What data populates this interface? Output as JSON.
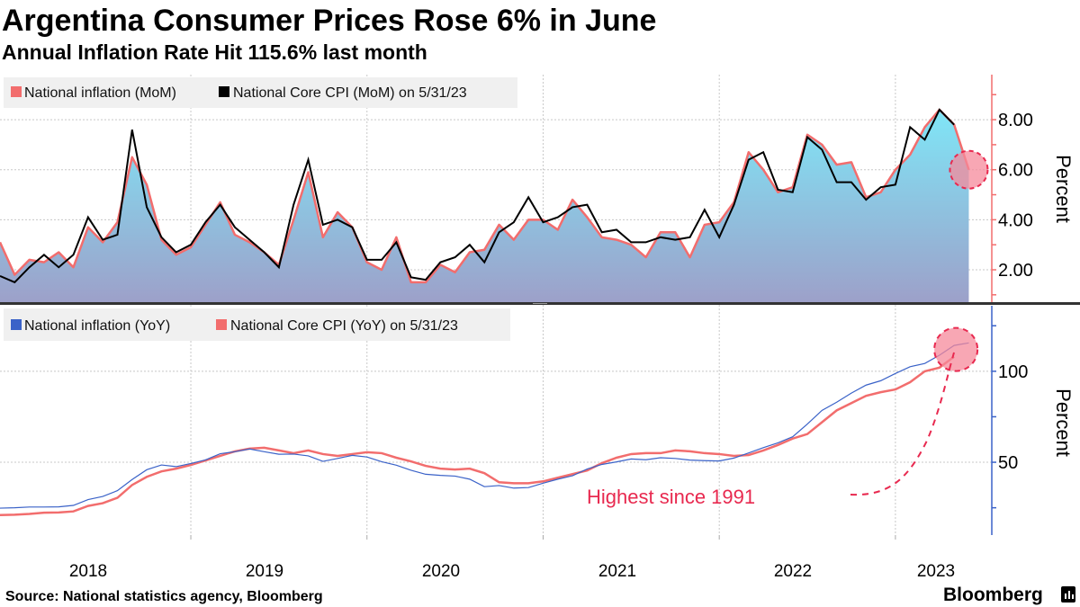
{
  "title": "Argentina Consumer Prices Rose 6% in June",
  "subtitle": "Annual Inflation Rate Hit 115.6% last month",
  "source": "Source: National statistics agency, Bloomberg",
  "brand": "Bloomberg",
  "colors": {
    "headline_mom": "#f26d6d",
    "core_mom": "#000000",
    "headline_yoy": "#3a62c8",
    "core_yoy": "#f26d6d",
    "fill_top": "#7fe6f7",
    "fill_bottom": "#9da0c9",
    "annotation": "#e8294f",
    "top_axis": "#f26d6d",
    "bottom_axis": "#3a62c8"
  },
  "chart_data": [
    {
      "type": "area",
      "x_start": "2017-12",
      "x_end": "2023-06",
      "frequency": "monthly",
      "ylabel": "Percent",
      "ylim": [
        0.67,
        9.8
      ],
      "yticks": [
        "2.00",
        "4.00",
        "6.00",
        "8.00"
      ],
      "grid": true,
      "legend_placement": "top-left",
      "series": [
        {
          "name": "National inflation (MoM)",
          "style": "area-line",
          "values": [
            3.1,
            1.8,
            2.4,
            2.3,
            2.7,
            2.1,
            3.7,
            3.1,
            3.9,
            6.5,
            5.4,
            3.2,
            2.6,
            2.9,
            3.8,
            4.7,
            3.4,
            3.1,
            2.7,
            2.2,
            4.0,
            5.9,
            3.3,
            4.3,
            3.7,
            2.3,
            2.0,
            3.3,
            1.5,
            1.5,
            2.2,
            1.9,
            2.7,
            2.8,
            3.8,
            3.2,
            4.0,
            4.0,
            3.6,
            4.8,
            4.1,
            3.3,
            3.2,
            3.0,
            2.5,
            3.5,
            3.5,
            2.5,
            3.8,
            3.9,
            4.7,
            6.7,
            6.0,
            5.1,
            5.3,
            7.4,
            7.0,
            6.2,
            6.3,
            4.9,
            5.1,
            6.0,
            6.6,
            7.7,
            8.4,
            7.8,
            6.0
          ]
        },
        {
          "name": "National Core CPI (MoM) on 5/31/23",
          "style": "line",
          "values": [
            1.75,
            1.5,
            2.1,
            2.6,
            2.1,
            2.6,
            4.1,
            3.2,
            3.4,
            7.6,
            4.5,
            3.3,
            2.7,
            3.0,
            3.9,
            4.6,
            3.7,
            3.2,
            2.7,
            2.1,
            4.6,
            6.4,
            3.8,
            4.0,
            3.7,
            2.4,
            2.4,
            3.1,
            1.7,
            1.6,
            2.3,
            2.5,
            3.0,
            2.3,
            3.5,
            3.9,
            4.9,
            3.9,
            4.1,
            4.5,
            4.6,
            3.5,
            3.6,
            3.1,
            3.1,
            3.3,
            3.2,
            3.3,
            4.4,
            3.3,
            4.6,
            6.4,
            6.7,
            5.2,
            5.1,
            7.3,
            6.8,
            5.5,
            5.5,
            4.8,
            5.3,
            5.4,
            7.7,
            7.2,
            8.4,
            7.8
          ]
        }
      ],
      "annotation": {
        "type": "circle",
        "at": "2023-06",
        "value": 6.0
      }
    },
    {
      "type": "line",
      "x_start": "2017-12",
      "x_end": "2023-06",
      "frequency": "monthly",
      "ylabel": "Percent",
      "ylim": [
        10,
        136
      ],
      "yticks": [
        "50",
        "100"
      ],
      "grid": true,
      "legend_placement": "top-left",
      "series": [
        {
          "name": "National inflation (YoY)",
          "values": [
            24.8,
            25.0,
            25.4,
            25.4,
            25.5,
            26.3,
            29.5,
            31.2,
            34.4,
            40.5,
            45.9,
            48.5,
            47.6,
            49.3,
            51.3,
            54.7,
            55.8,
            57.3,
            55.8,
            54.4,
            54.5,
            53.5,
            50.5,
            52.1,
            53.8,
            52.9,
            50.3,
            48.4,
            45.6,
            43.4,
            42.8,
            42.4,
            40.7,
            36.6,
            37.2,
            35.8,
            36.1,
            38.5,
            40.7,
            42.6,
            46.3,
            48.8,
            50.2,
            51.8,
            51.4,
            52.5,
            52.1,
            51.2,
            50.9,
            50.7,
            52.3,
            55.1,
            58.0,
            60.7,
            64.0,
            71.0,
            78.5,
            83.0,
            88.0,
            92.4,
            94.8,
            98.8,
            102.5,
            104.3,
            108.8,
            114.2,
            115.6
          ]
        },
        {
          "name": "National Core CPI (YoY) on 5/31/23",
          "values": [
            21.0,
            21.2,
            21.6,
            22.3,
            22.4,
            23.0,
            26.0,
            27.5,
            30.5,
            37.5,
            42.0,
            45.0,
            46.5,
            48.5,
            51.0,
            53.5,
            56.0,
            57.5,
            58.0,
            56.5,
            55.0,
            56.5,
            54.5,
            53.5,
            54.5,
            55.5,
            55.0,
            52.5,
            50.5,
            48.0,
            46.5,
            46.0,
            46.5,
            44.0,
            39.0,
            38.5,
            38.5,
            39.5,
            41.5,
            43.5,
            45.5,
            49.5,
            52.5,
            54.5,
            55.0,
            55.0,
            56.5,
            56.0,
            55.0,
            54.5,
            53.5,
            54.0,
            56.5,
            59.5,
            63.0,
            65.5,
            72.0,
            78.5,
            82.5,
            86.5,
            88.5,
            90.0,
            94.0,
            100.0,
            102.0,
            108.0
          ]
        }
      ],
      "annotation": {
        "text": "Highest since 1991",
        "at": "2023-06",
        "value": 115.6
      }
    }
  ],
  "x_axis": {
    "tick_labels": [
      "2018",
      "2019",
      "2020",
      "2021",
      "2022",
      "2023"
    ]
  }
}
